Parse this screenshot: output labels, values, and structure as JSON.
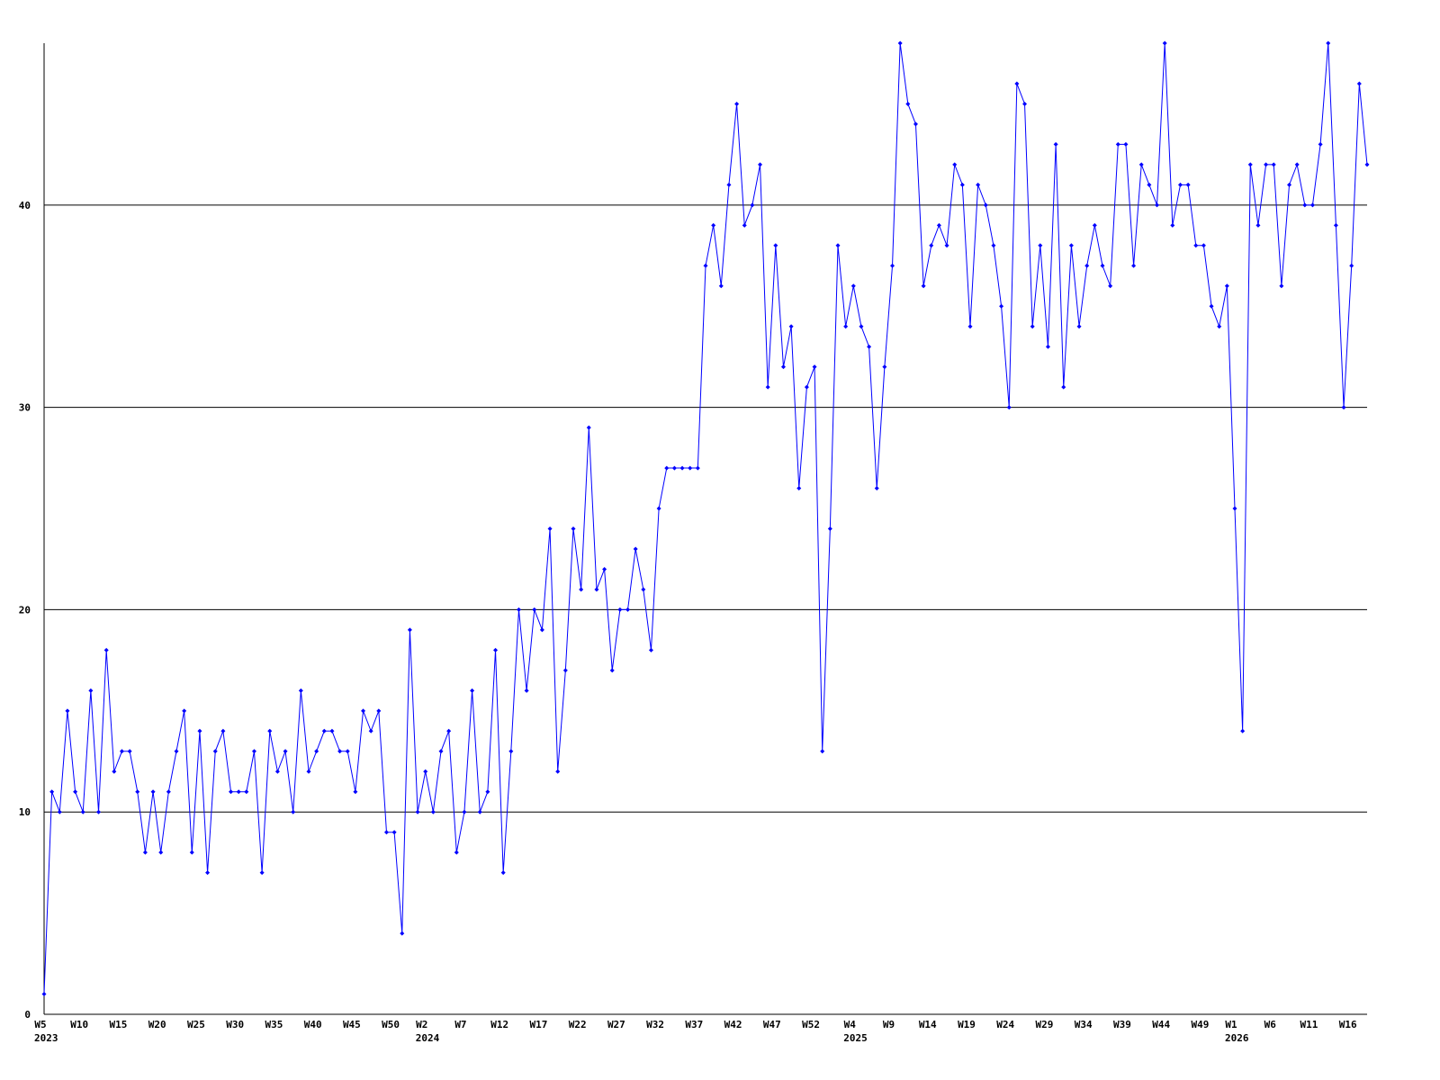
{
  "chart_data": {
    "type": "line",
    "color": "#0000ff",
    "ylim": [
      0,
      48
    ],
    "yticks": [
      0,
      10,
      20,
      30,
      40
    ],
    "grid": true,
    "categories": [
      "W5",
      null,
      null,
      null,
      null,
      "W10",
      null,
      null,
      null,
      null,
      "W15",
      null,
      null,
      null,
      null,
      "W20",
      null,
      null,
      null,
      null,
      "W25",
      null,
      null,
      null,
      null,
      "W30",
      null,
      null,
      null,
      null,
      "W35",
      null,
      null,
      null,
      null,
      "W40",
      null,
      null,
      null,
      null,
      "W45",
      null,
      null,
      null,
      null,
      "W50",
      null,
      null,
      null,
      "W2",
      null,
      null,
      null,
      null,
      "W7",
      null,
      null,
      null,
      null,
      "W12",
      null,
      null,
      null,
      null,
      "W17",
      null,
      null,
      null,
      null,
      "W22",
      null,
      null,
      null,
      null,
      "W27",
      null,
      null,
      null,
      null,
      "W32",
      null,
      null,
      null,
      null,
      "W37",
      null,
      null,
      null,
      null,
      "W42",
      null,
      null,
      null,
      null,
      "W47",
      null,
      null,
      null,
      null,
      "W52",
      null,
      null,
      null,
      null,
      "W4",
      null,
      null,
      null,
      null,
      "W9",
      null,
      null,
      null,
      null,
      "W14",
      null,
      null,
      null,
      null,
      "W19",
      null,
      null,
      null,
      null,
      "W24",
      null,
      null,
      null,
      null,
      "W29",
      null,
      null,
      null,
      null,
      "W34",
      null,
      null,
      null,
      null,
      "W39",
      null,
      null,
      null,
      null,
      "W44",
      null,
      null,
      null,
      null,
      "W49",
      null,
      null,
      null,
      "W1",
      null,
      null,
      null,
      null,
      "W6",
      null,
      null,
      null,
      null,
      "W11",
      null,
      null,
      null,
      null,
      "W16",
      null,
      null
    ],
    "category_years": [
      "2023",
      null,
      null,
      null,
      null,
      null,
      null,
      null,
      null,
      null,
      null,
      null,
      null,
      null,
      null,
      null,
      null,
      null,
      null,
      null,
      null,
      null,
      null,
      null,
      null,
      null,
      null,
      null,
      null,
      null,
      null,
      null,
      null,
      null,
      null,
      null,
      null,
      null,
      null,
      null,
      null,
      null,
      null,
      null,
      null,
      null,
      null,
      null,
      null,
      "2024",
      null,
      null,
      null,
      null,
      null,
      null,
      null,
      null,
      null,
      null,
      null,
      null,
      null,
      null,
      null,
      null,
      null,
      null,
      null,
      null,
      null,
      null,
      null,
      null,
      null,
      null,
      null,
      null,
      null,
      null,
      null,
      null,
      null,
      null,
      null,
      null,
      null,
      null,
      null,
      null,
      null,
      null,
      null,
      null,
      null,
      null,
      null,
      null,
      null,
      null,
      null,
      null,
      null,
      null,
      "2025",
      null,
      null,
      null,
      null,
      null,
      null,
      null,
      null,
      null,
      null,
      null,
      null,
      null,
      null,
      null,
      null,
      null,
      null,
      null,
      null,
      null,
      null,
      null,
      null,
      null,
      null,
      null,
      null,
      null,
      null,
      null,
      null,
      null,
      null,
      null,
      null,
      null,
      null,
      null,
      null,
      null,
      null,
      null,
      null,
      null,
      null,
      null,
      null,
      "2026",
      null,
      null,
      null,
      null,
      null,
      null,
      null,
      null,
      null,
      null,
      null,
      null,
      null,
      null,
      null,
      null,
      null
    ],
    "values": [
      1,
      11,
      10,
      15,
      11,
      10,
      16,
      10,
      18,
      12,
      13,
      13,
      11,
      8,
      11,
      8,
      11,
      13,
      15,
      8,
      14,
      7,
      13,
      14,
      11,
      11,
      11,
      13,
      7,
      14,
      12,
      13,
      10,
      16,
      12,
      13,
      14,
      14,
      13,
      13,
      11,
      15,
      14,
      15,
      9,
      9,
      4,
      19,
      10,
      12,
      10,
      13,
      14,
      8,
      10,
      16,
      10,
      11,
      18,
      7,
      13,
      20,
      16,
      20,
      19,
      24,
      12,
      17,
      24,
      21,
      29,
      21,
      22,
      17,
      20,
      20,
      23,
      21,
      18,
      25,
      27,
      27,
      27,
      27,
      27,
      37,
      39,
      36,
      41,
      45,
      39,
      40,
      42,
      31,
      38,
      32,
      34,
      26,
      31,
      32,
      13,
      24,
      38,
      34,
      36,
      34,
      33,
      26,
      32,
      37,
      48,
      45,
      44,
      36,
      38,
      39,
      38,
      42,
      41,
      34,
      41,
      40,
      38,
      35,
      30,
      46,
      45,
      34,
      38,
      33,
      43,
      31,
      38,
      34,
      37,
      39,
      37,
      36,
      43,
      43,
      37,
      42,
      41,
      40,
      48,
      39,
      41,
      41,
      38,
      38,
      35,
      34,
      36,
      25,
      14,
      42,
      39,
      42,
      42,
      36,
      41,
      42,
      40,
      40,
      43,
      48,
      39,
      30,
      37,
      46,
      42
    ]
  }
}
